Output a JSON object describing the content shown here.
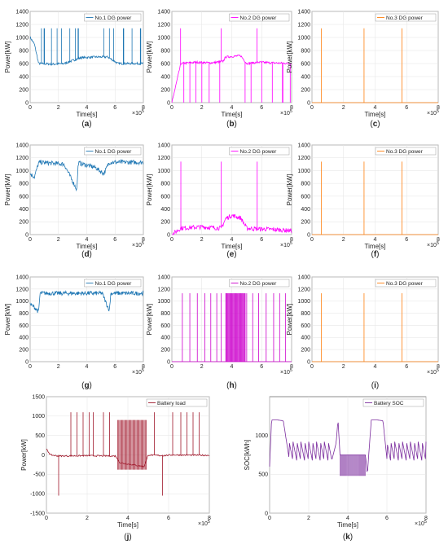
{
  "chart_data": [
    {
      "id": "a",
      "type": "line",
      "panel_label": [
        "(",
        "a",
        ")"
      ],
      "xlabel": "Time[s]",
      "ylabel": "Power[kW]",
      "xlim": [
        0,
        8
      ],
      "ylim": [
        0,
        1400
      ],
      "x_ticks": [
        "0",
        "2",
        "4",
        "6",
        "8"
      ],
      "y_ticks": [
        "0",
        "200",
        "400",
        "600",
        "800",
        "1000",
        "1200",
        "1400"
      ],
      "x_exponent": "×10^5",
      "grid": true,
      "legend": "top-right",
      "series": [
        {
          "name": "No.1 DG power",
          "color": "#1f77b4",
          "pattern": "switching",
          "x": [
            0,
            0.3,
            0.6,
            1.6,
            2.4,
            3.6,
            4.6,
            5.5,
            6.2,
            7.5,
            8
          ],
          "y": [
            1000,
            900,
            600,
            590,
            600,
            690,
            700,
            700,
            600,
            600,
            600
          ],
          "spikes": [
            0.8,
            1.0,
            1.5,
            1.9,
            2.2,
            2.8,
            3.2,
            3.4,
            5.2,
            5.6,
            5.9,
            6.6,
            7.2,
            7.8
          ],
          "spike_top": 1140
        }
      ]
    },
    {
      "id": "b",
      "type": "line",
      "panel_label": [
        "(",
        "b",
        ")"
      ],
      "xlabel": "Time[s]",
      "ylabel": "Power[kW]",
      "xlim": [
        0,
        8
      ],
      "ylim": [
        0,
        1400
      ],
      "x_ticks": [
        "0",
        "2",
        "4",
        "6",
        "8"
      ],
      "y_ticks": [
        "0",
        "200",
        "400",
        "600",
        "800",
        "1000",
        "1200",
        "1400"
      ],
      "x_exponent": "×10^5",
      "grid": true,
      "legend": "top-right",
      "series": [
        {
          "name": "No.2 DG power",
          "color": "#ff00ff",
          "pattern": "switching",
          "x": [
            0,
            0.6,
            1.6,
            2.6,
            3.4,
            3.6,
            4.6,
            5.0,
            5.8,
            6.8,
            8
          ],
          "y": [
            0,
            600,
            620,
            610,
            630,
            700,
            720,
            600,
            620,
            610,
            600
          ],
          "spikes": [
            0.6,
            3.3,
            5.7
          ],
          "spike_top": 1140,
          "drops": [
            0.8,
            1.2,
            1.6,
            2.0,
            2.5,
            3.2,
            4.9,
            5.3,
            6.0,
            6.7,
            7.4,
            7.9
          ]
        }
      ]
    },
    {
      "id": "c",
      "type": "line",
      "panel_label": [
        "(",
        "c",
        ")"
      ],
      "xlabel": "Time[s]",
      "ylabel": "Power[kW]",
      "xlim": [
        0,
        8
      ],
      "ylim": [
        0,
        1400
      ],
      "x_ticks": [
        "0",
        "2",
        "4",
        "6",
        "8"
      ],
      "y_ticks": [
        "0",
        "200",
        "400",
        "600",
        "800",
        "1000",
        "1200",
        "1400"
      ],
      "x_exponent": "×10^5",
      "grid": true,
      "legend": "top-right",
      "series": [
        {
          "name": "No.3 DG power",
          "color": "#ff7f0e",
          "pattern": "spikes",
          "x": [
            0,
            8
          ],
          "y": [
            0,
            0
          ],
          "spikes": [
            0.6,
            3.3,
            5.7
          ],
          "spike_top": 1140
        }
      ]
    },
    {
      "id": "d",
      "type": "line",
      "panel_label": [
        "(",
        "d",
        ")"
      ],
      "xlabel": "Time[s]",
      "ylabel": "Power[kW]",
      "xlim": [
        0,
        8
      ],
      "ylim": [
        0,
        1400
      ],
      "x_ticks": [
        "0",
        "2",
        "4",
        "6",
        "8"
      ],
      "y_ticks": [
        "0",
        "200",
        "400",
        "600",
        "800",
        "1000",
        "1200",
        "1400"
      ],
      "x_exponent": "×10^5",
      "grid": true,
      "legend": "top-right",
      "series": [
        {
          "name": "No.1 DG power",
          "color": "#1f77b4",
          "pattern": "noisy",
          "x": [
            0,
            0.3,
            0.6,
            0.7,
            2.4,
            3.3,
            3.4,
            4.6,
            5.2,
            5.6,
            5.8,
            8
          ],
          "y": [
            950,
            900,
            1120,
            1130,
            1100,
            700,
            1120,
            1050,
            950,
            1130,
            1130,
            1130
          ]
        }
      ]
    },
    {
      "id": "e",
      "type": "line",
      "panel_label": [
        "(",
        "e",
        ")"
      ],
      "xlabel": "Time[s]",
      "ylabel": "Power[kW]",
      "xlim": [
        0,
        8
      ],
      "ylim": [
        0,
        1400
      ],
      "x_ticks": [
        "0",
        "2",
        "4",
        "6",
        "8"
      ],
      "y_ticks": [
        "0",
        "200",
        "400",
        "600",
        "800",
        "1000",
        "1200",
        "1400"
      ],
      "x_exponent": "×10^5",
      "grid": true,
      "legend": "top-right",
      "series": [
        {
          "name": "No.2 DG power",
          "color": "#ff00ff",
          "pattern": "noisy",
          "x": [
            0,
            0.6,
            2.0,
            3.3,
            3.6,
            4.0,
            4.6,
            5.0,
            5.6,
            6.8,
            8
          ],
          "y": [
            0,
            100,
            120,
            100,
            250,
            300,
            260,
            100,
            90,
            80,
            60
          ],
          "spikes": [
            0.6,
            3.3,
            5.7
          ],
          "spike_top": 1140
        }
      ]
    },
    {
      "id": "f",
      "type": "line",
      "panel_label": [
        "(",
        "f",
        ")"
      ],
      "xlabel": "Time[s]",
      "ylabel": "Power[kW]",
      "xlim": [
        0,
        8
      ],
      "ylim": [
        0,
        1400
      ],
      "x_ticks": [
        "0",
        "2",
        "4",
        "6",
        "8"
      ],
      "y_ticks": [
        "0",
        "200",
        "400",
        "600",
        "800",
        "1000",
        "1200",
        "1400"
      ],
      "x_exponent": "×10^5",
      "grid": true,
      "legend": "top-right",
      "series": [
        {
          "name": "No.3 DG power",
          "color": "#ff7f0e",
          "pattern": "spikes",
          "x": [
            0,
            8
          ],
          "y": [
            0,
            0
          ],
          "spikes": [
            0.6,
            3.3,
            5.7
          ],
          "spike_top": 1140
        }
      ]
    },
    {
      "id": "g",
      "type": "line",
      "panel_label": [
        "(",
        "g",
        ")"
      ],
      "xlabel": "",
      "ylabel": "Power[kW]",
      "xlim": [
        0,
        8
      ],
      "ylim": [
        0,
        1400
      ],
      "x_ticks": [
        "0",
        "2",
        "4",
        "6",
        "8"
      ],
      "y_ticks": [
        "0",
        "200",
        "400",
        "600",
        "800",
        "1000",
        "1200",
        "1400"
      ],
      "x_exponent": "×10^5",
      "grid": true,
      "legend": "top-right",
      "series": [
        {
          "name": "No.1 DG power",
          "color": "#1f77b4",
          "pattern": "noisy",
          "x": [
            0,
            0.3,
            0.6,
            0.7,
            5.1,
            5.4,
            5.6,
            5.7,
            8
          ],
          "y": [
            950,
            900,
            820,
            1130,
            1130,
            950,
            850,
            1130,
            1130
          ]
        }
      ]
    },
    {
      "id": "h",
      "type": "line",
      "panel_label": [
        "(",
        "h",
        ")"
      ],
      "xlabel": "",
      "ylabel": "Power[kW]",
      "xlim": [
        0,
        8
      ],
      "ylim": [
        0,
        1400
      ],
      "x_ticks": [
        "0",
        "2",
        "4",
        "6",
        "8"
      ],
      "y_ticks": [
        "0",
        "200",
        "400",
        "600",
        "800",
        "1000",
        "1200",
        "1400"
      ],
      "x_exponent": "×10^5",
      "grid": true,
      "legend": "top-right",
      "series": [
        {
          "name": "No.2 DG power",
          "color": "#cc00cc",
          "pattern": "bursts",
          "x": [
            0,
            8
          ],
          "y": [
            0,
            0
          ],
          "spike_top": 1130,
          "spikes": [
            0.7,
            1.2,
            1.7,
            2.2,
            2.6,
            3.0,
            3.3,
            5.0,
            5.4,
            5.8,
            6.3,
            6.8,
            7.2,
            7.6
          ],
          "burst_range": [
            3.6,
            4.9
          ]
        }
      ]
    },
    {
      "id": "i",
      "type": "line",
      "panel_label": [
        "(",
        "i",
        ")"
      ],
      "xlabel": "",
      "ylabel": "Power[kW]",
      "xlim": [
        0,
        8
      ],
      "ylim": [
        0,
        1400
      ],
      "x_ticks": [
        "0",
        "2",
        "4",
        "6",
        "8"
      ],
      "y_ticks": [
        "0",
        "200",
        "400",
        "600",
        "800",
        "1000",
        "1200",
        "1400"
      ],
      "x_exponent": "×10^5",
      "grid": true,
      "legend": "top-right",
      "series": [
        {
          "name": "No.3 DG power",
          "color": "#ff7f0e",
          "pattern": "spikes",
          "x": [
            0,
            8
          ],
          "y": [
            0,
            0
          ],
          "spikes": [
            0.6,
            3.3,
            5.7
          ],
          "spike_top": 1130
        }
      ]
    },
    {
      "id": "j",
      "type": "line",
      "panel_label": [
        "(",
        "j",
        ")"
      ],
      "xlabel": "Time[s]",
      "ylabel": "Power[kW]",
      "xlim": [
        0,
        8
      ],
      "ylim": [
        -1500,
        1500
      ],
      "x_ticks": [
        "0",
        "2",
        "4",
        "6",
        "8"
      ],
      "y_ticks": [
        "-1500",
        "-1000",
        "-500",
        "0",
        "500",
        "1000",
        "1500"
      ],
      "x_exponent": "×10^5",
      "grid": true,
      "legend": "top-right",
      "series": [
        {
          "name": "Battery load",
          "color": "#a0182b",
          "pattern": "bursts",
          "x": [
            0,
            0.2,
            0.6,
            2.0,
            3.4,
            3.6,
            4.8,
            5.0,
            5.7,
            6.2,
            8
          ],
          "y": [
            150,
            0,
            -30,
            -20,
            -30,
            -200,
            -300,
            0,
            -20,
            0,
            -10
          ],
          "spike_top": 1100,
          "spikes": [
            1.2,
            1.5,
            1.8,
            2.1,
            2.3,
            2.8,
            3.1,
            5.3,
            6.2,
            6.6,
            6.9,
            7.2,
            7.5
          ],
          "burst_range": [
            3.5,
            4.9
          ],
          "burst_top": 900,
          "burst_bottom": -380,
          "neg_spikes": [
            0.6,
            5.7
          ],
          "neg_bottom": -1050
        }
      ]
    },
    {
      "id": "k",
      "type": "line",
      "panel_label": [
        "(",
        "k",
        ")"
      ],
      "xlabel": "Time[s]",
      "ylabel": "SOC[kWh]",
      "xlim": [
        0,
        8
      ],
      "ylim": [
        0,
        1500
      ],
      "x_ticks": [
        "0",
        "2",
        "4",
        "6",
        "8"
      ],
      "y_ticks": [
        "0",
        "500",
        "1000"
      ],
      "x_exponent": "×10^5",
      "grid": true,
      "legend": "top-right",
      "series": [
        {
          "name": "Battery SOC",
          "color": "#7b2c9e",
          "pattern": "sawtooth",
          "x": [
            0,
            0.1,
            0.4,
            0.7,
            1.0,
            3.2,
            3.4,
            3.5,
            3.6,
            4.9,
            5.0,
            5.2,
            5.5,
            5.8,
            6.0,
            8
          ],
          "y": [
            600,
            1200,
            1200,
            1190,
            700,
            700,
            900,
            1200,
            750,
            750,
            500,
            1200,
            1200,
            1190,
            700,
            700
          ]
        }
      ]
    }
  ]
}
